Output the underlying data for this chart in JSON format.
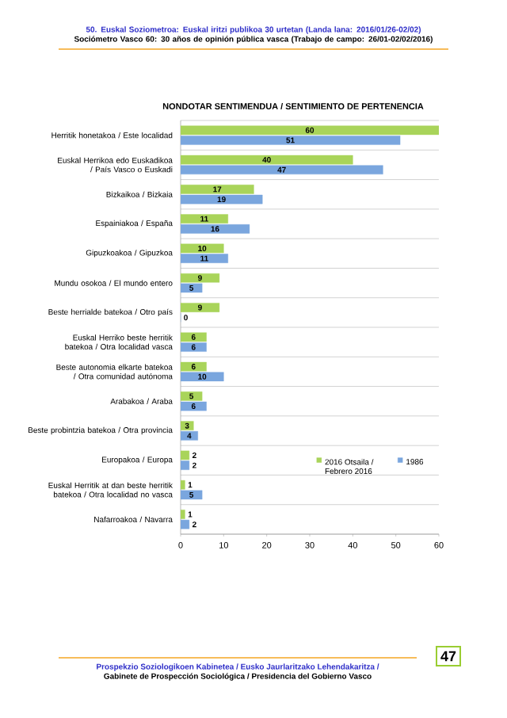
{
  "chart_data": {
    "type": "bar",
    "orientation": "horizontal",
    "title": "NONDOTAR SENTIMENDUA / SENTIMIENTO DE PERTENENCIA",
    "categories": [
      "Herritik honetakoa / Este localidad",
      "Euskal Herrikoa edo Euskadikoa / País Vasco o Euskadi",
      "Bizkaikoa / Bizkaia",
      "Espainiakoa / España",
      "Gipuzkoakoa / Gipuzkoa",
      "Mundu osokoa / El mundo entero",
      "Beste herrialde batekoa / Otro país",
      "Euskal Herriko beste herritik batekoa / Otra localidad vasca",
      "Beste autonomia elkarte batekoa / Otra comunidad autónoma",
      "Arabakoa / Araba",
      "Beste probintzia batekoa / Otra provincia",
      "Europakoa / Europa",
      "Euskal Herritik at dan beste herritik batekoa / Otra localidad no vasca",
      "Nafarroakoa / Navarra"
    ],
    "series": [
      {
        "name": "2016 Otsaila / Febrero 2016",
        "color": "#a9d45a",
        "values": [
          60,
          40,
          17,
          11,
          10,
          9,
          9,
          6,
          6,
          5,
          3,
          2,
          1,
          1
        ]
      },
      {
        "name": "1986",
        "color": "#7aa6de",
        "values": [
          51,
          47,
          19,
          16,
          11,
          5,
          0,
          6,
          10,
          6,
          4,
          2,
          5,
          2
        ]
      }
    ],
    "xlim": [
      0,
      60
    ],
    "xticks": [
      0,
      10,
      20,
      30,
      40,
      50,
      60
    ],
    "data_labels": true,
    "legend": "bottom right",
    "grid": "y",
    "annotations": [
      "50. Euskal Soziometroa: Euskal iritzi publikoa 30 urtetan (Landa lana: 2016/01/26-02/02)",
      "Sociómetro Vasco 60: 30 años de opinión pública vasca (Trabajo de campo: 26/01-02/02/2016)",
      "Prospekzio Soziologikoen Kabinetea / Eusko Jaurlaritzako Lehendakaritza /",
      "Gabinete de Prospección Sociológica / Presidencia del Gobierno Vasco",
      "47"
    ]
  }
}
